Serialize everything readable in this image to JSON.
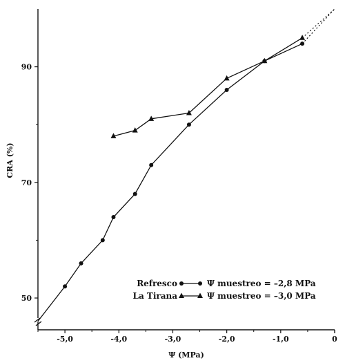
{
  "chart_data": {
    "type": "line",
    "title": "",
    "xlabel": "Ψ (MPa)",
    "ylabel": "CRA (%)",
    "xlim": [
      -5.5,
      0
    ],
    "ylim": [
      44.5,
      100
    ],
    "x_ticks": [
      {
        "value": -5.0,
        "label": "-5,0"
      },
      {
        "value": -4.0,
        "label": "-4,0"
      },
      {
        "value": -3.0,
        "label": "-3,0"
      },
      {
        "value": -2.0,
        "label": "-2,0"
      },
      {
        "value": -1.0,
        "label": "-1,0"
      },
      {
        "value": 0,
        "label": "0"
      }
    ],
    "y_ticks": [
      {
        "value": 50,
        "label": "50"
      },
      {
        "value": 70,
        "label": "70"
      },
      {
        "value": 90,
        "label": "90"
      }
    ],
    "grid": false,
    "axis_break": "y",
    "legend_position": "bottom-right",
    "series": [
      {
        "name": "Refresco",
        "legend_text": "Ψ muestreo = –2,8 MPa",
        "marker": "circle",
        "color": "#111111",
        "points": [
          {
            "x": -5.5,
            "y": 46
          },
          {
            "x": -5.0,
            "y": 52
          },
          {
            "x": -4.7,
            "y": 56
          },
          {
            "x": -4.3,
            "y": 60
          },
          {
            "x": -4.1,
            "y": 64
          },
          {
            "x": -3.7,
            "y": 68
          },
          {
            "x": -3.4,
            "y": 73
          },
          {
            "x": -2.7,
            "y": 80
          },
          {
            "x": -2.0,
            "y": 86
          },
          {
            "x": -1.3,
            "y": 91
          },
          {
            "x": -0.6,
            "y": 94
          }
        ]
      },
      {
        "name": "La Tirana",
        "legend_text": "Ψ muestreo = –3,0 MPa",
        "marker": "triangle",
        "color": "#111111",
        "points": [
          {
            "x": -4.1,
            "y": 78
          },
          {
            "x": -3.7,
            "y": 79
          },
          {
            "x": -3.4,
            "y": 81
          },
          {
            "x": -2.7,
            "y": 82
          },
          {
            "x": -2.0,
            "y": 88
          },
          {
            "x": -1.3,
            "y": 91
          },
          {
            "x": -0.6,
            "y": 95
          }
        ]
      }
    ],
    "extrapolation": {
      "style": "dotted",
      "from": {
        "x": -0.6,
        "y": 95
      },
      "to": {
        "x": 0,
        "y": 100
      }
    }
  }
}
